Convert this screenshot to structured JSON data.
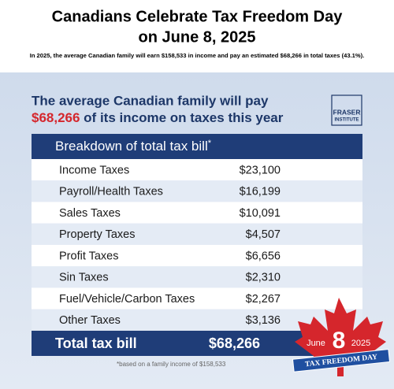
{
  "header": {
    "title": [
      "Canadians Celebrate Tax Freedom Day",
      "on June 8, 2025"
    ],
    "subtitle": "In 2025, the average Canadian family will earn $158,533 in income and pay an estimated $68,266 in total taxes (43.1%)."
  },
  "headline": {
    "line1": "The average Canadian family will pay",
    "amount": "$68,266",
    "rest": " of its income on taxes this year"
  },
  "logo": [
    "FRASER",
    "INSTITUTE"
  ],
  "table": {
    "heading": "Breakdown of total tax bill",
    "heading_mark": "*",
    "rows": [
      [
        "Income Taxes",
        "$23,100"
      ],
      [
        "Payroll/Health Taxes",
        "$16,199"
      ],
      [
        "Sales Taxes",
        "$10,091"
      ],
      [
        "Property Taxes",
        "$4,507"
      ],
      [
        "Profit Taxes",
        "$6,656"
      ],
      [
        "Sin Taxes",
        "$2,310"
      ],
      [
        "Fuel/Vehicle/Carbon Taxes",
        "$2,267"
      ],
      [
        "Other Taxes",
        "$3,136"
      ]
    ],
    "total": [
      "Total tax bill",
      "$68,266"
    ],
    "footnote": "*based on a family income of $158,533"
  },
  "badge": {
    "month": "June",
    "day": "8",
    "year": "2025",
    "ribbon": "TAX FREEDOM DAY"
  }
}
